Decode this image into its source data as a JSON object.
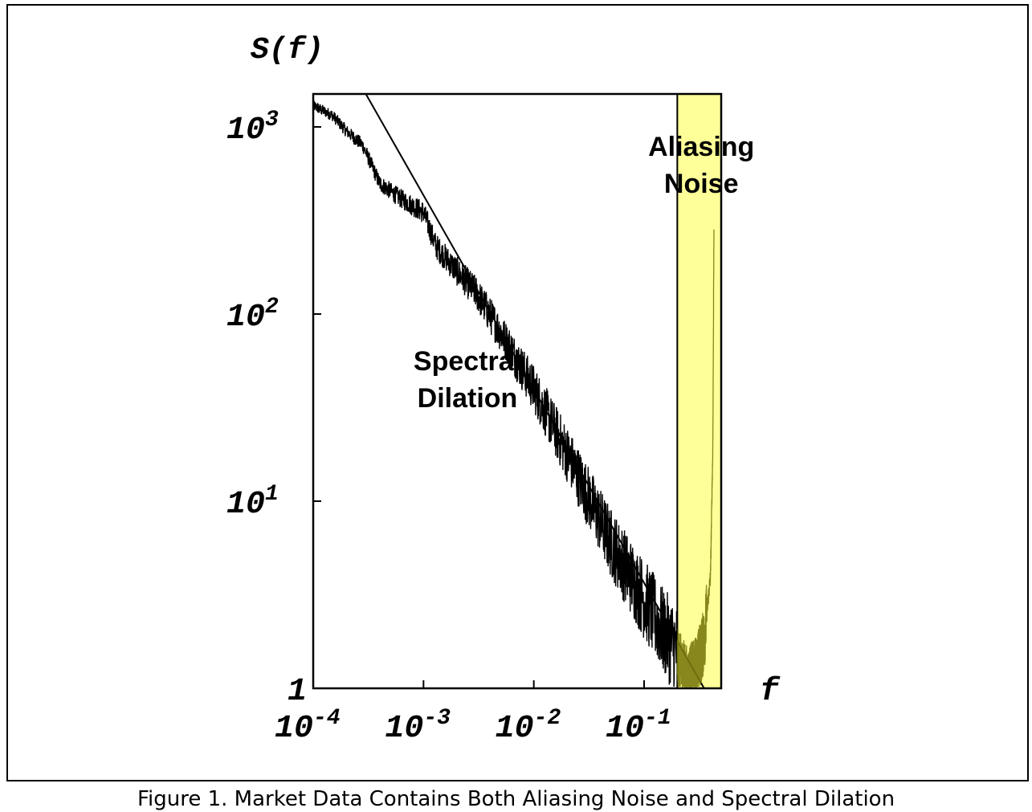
{
  "caption": "Figure 1.  Market Data Contains Both Aliasing Noise and Spectral Dilation",
  "chart_data": {
    "type": "line",
    "title": "",
    "ylabel": "S(f)",
    "xlabel": "f",
    "x_scale": "log",
    "y_scale": "log",
    "xlim": [
      0.0001,
      0.5
    ],
    "ylim": [
      1,
      1500
    ],
    "x_ticks": [
      {
        "value": 0.0001,
        "base": "10",
        "exp": "-4"
      },
      {
        "value": 0.001,
        "base": "10",
        "exp": "-3"
      },
      {
        "value": 0.01,
        "base": "10",
        "exp": "-2"
      },
      {
        "value": 0.1,
        "base": "10",
        "exp": "-1"
      }
    ],
    "y_ticks": [
      {
        "value": 1,
        "base": "1",
        "exp": ""
      },
      {
        "value": 10,
        "base": "10",
        "exp": "1"
      },
      {
        "value": 100,
        "base": "10",
        "exp": "2"
      },
      {
        "value": 1000,
        "base": "10",
        "exp": "3"
      }
    ],
    "grid": false,
    "series": [
      {
        "name": "",
        "style": "noisy",
        "points": [
          [
            0.0001,
            1300
          ],
          [
            0.00015,
            1150
          ],
          [
            0.0002,
            950
          ],
          [
            0.00028,
            800
          ],
          [
            0.0004,
            500
          ],
          [
            0.0006,
            420
          ],
          [
            0.001,
            350
          ],
          [
            0.0013,
            230
          ],
          [
            0.002,
            170
          ],
          [
            0.003,
            130
          ],
          [
            0.005,
            80
          ],
          [
            0.01,
            40
          ],
          [
            0.02,
            18
          ],
          [
            0.05,
            6
          ],
          [
            0.1,
            3
          ],
          [
            0.15,
            2
          ],
          [
            0.2,
            1.6
          ]
        ]
      },
      {
        "name": "",
        "style": "fit",
        "points": [
          [
            0.0003,
            1500
          ],
          [
            0.35,
            1
          ]
        ]
      },
      {
        "name": "",
        "style": "aliasing",
        "points": [
          [
            0.2,
            1.4
          ],
          [
            0.25,
            1.1
          ],
          [
            0.3,
            1.3
          ],
          [
            0.35,
            1.8
          ],
          [
            0.4,
            4
          ],
          [
            0.42,
            20
          ],
          [
            0.43,
            300
          ]
        ]
      }
    ],
    "shaded_region": {
      "x_from": 0.2,
      "x_to": 0.5,
      "color": "#ffff99"
    },
    "annotations": [
      {
        "lines": [
          "Aliasing",
          "Noise"
        ],
        "x": 0.33,
        "y": 700
      },
      {
        "lines": [
          "Spectral",
          "Dilation"
        ],
        "x": 0.0025,
        "y": 50
      }
    ]
  }
}
